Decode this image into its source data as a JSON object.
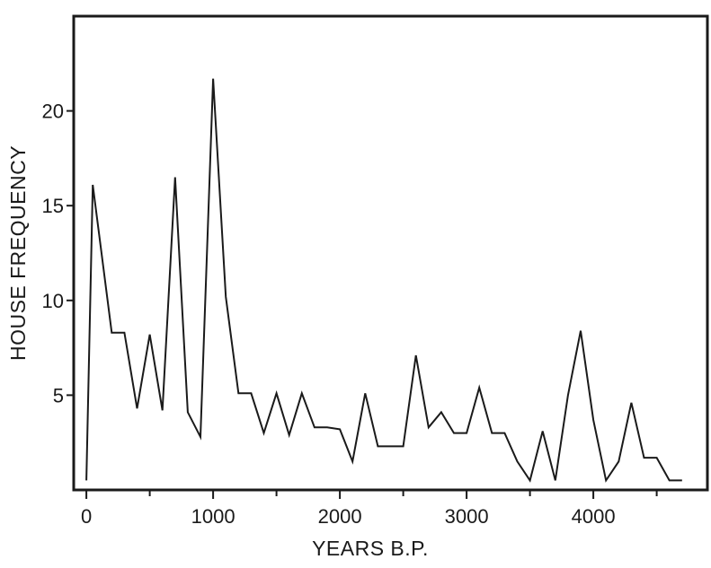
{
  "chart_data": {
    "type": "line",
    "title": "",
    "xlabel": "YEARS B.P.",
    "ylabel": "HOUSE FREQUENCY",
    "xlim": [
      -100,
      4900
    ],
    "ylim": [
      0,
      25
    ],
    "xticks": [
      0,
      1000,
      2000,
      3000,
      4000
    ],
    "xtick_labels": [
      "0",
      "1000",
      "2000",
      "3000",
      "4000"
    ],
    "xminor_ticks": [
      500,
      1500,
      2500,
      3500,
      4500
    ],
    "yticks": [
      5,
      10,
      15,
      20
    ],
    "ytick_labels": [
      "5",
      "10",
      "15",
      "20"
    ],
    "grid": false,
    "legend": "none",
    "line_color": "#1a1a1a",
    "series": [
      {
        "x": [
          0,
          50,
          200,
          300,
          400,
          500,
          600,
          700,
          800,
          900,
          1000,
          1100,
          1200,
          1300,
          1400,
          1500,
          1600,
          1700,
          1800,
          1900,
          2000,
          2100,
          2200,
          2300,
          2400,
          2500,
          2600,
          2700,
          2800,
          2900,
          3000,
          3100,
          3200,
          3300,
          3400,
          3500,
          3600,
          3700,
          3800,
          3900,
          4000,
          4100,
          4200,
          4300,
          4400,
          4500,
          4600,
          4700
        ],
        "y": [
          0.5,
          16.1,
          8.3,
          8.3,
          4.3,
          8.2,
          4.2,
          16.5,
          4.1,
          2.8,
          21.7,
          10.2,
          5.1,
          5.1,
          3.0,
          5.1,
          2.9,
          5.1,
          3.3,
          3.3,
          3.2,
          1.5,
          5.1,
          2.3,
          2.3,
          2.3,
          7.1,
          3.3,
          4.1,
          3.0,
          3.0,
          5.4,
          3.0,
          3.0,
          1.5,
          0.5,
          3.1,
          0.5,
          5.0,
          8.4,
          3.7,
          0.5,
          1.5,
          4.6,
          1.7,
          1.7,
          0.5,
          0.5
        ]
      }
    ]
  }
}
